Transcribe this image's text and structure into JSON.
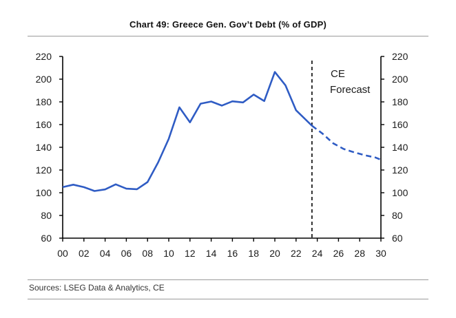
{
  "title": "Chart 49: Greece Gen. Gov’t Debt (% of GDP)",
  "source": "Sources: LSEG Data & Analytics, CE",
  "colors": {
    "series": "#2f5cc4",
    "axis": "#000000",
    "rule": "#9a9a9a"
  },
  "chart_data": {
    "type": "line",
    "title": "Chart 49: Greece Gen. Gov’t Debt (% of GDP)",
    "xlim": [
      2000,
      2030
    ],
    "ylim": [
      60,
      220
    ],
    "yticks": [
      60,
      80,
      100,
      120,
      140,
      160,
      180,
      200,
      220
    ],
    "xticks": [
      2000,
      2002,
      2004,
      2006,
      2008,
      2010,
      2012,
      2014,
      2016,
      2018,
      2020,
      2022,
      2024,
      2026,
      2028,
      2030
    ],
    "xtick_labels": [
      "00",
      "02",
      "04",
      "06",
      "08",
      "10",
      "12",
      "14",
      "16",
      "18",
      "20",
      "22",
      "24",
      "26",
      "28",
      "30"
    ],
    "grid": false,
    "right_axis": true,
    "forecast_divider_x": 2023.5,
    "annotation": {
      "lines": [
        "CE",
        "Forecast"
      ]
    },
    "series": [
      {
        "style": "solid",
        "x": [
          2000,
          2001,
          2002,
          2003,
          2004,
          2005,
          2006,
          2007,
          2008,
          2009,
          2010,
          2011,
          2012,
          2013,
          2014,
          2015,
          2016,
          2017,
          2018,
          2019,
          2020,
          2021,
          2022,
          2023.5
        ],
        "values": [
          104.9,
          107.1,
          104.9,
          101.5,
          102.9,
          107.4,
          103.6,
          103.1,
          109.4,
          126.7,
          147.5,
          175.2,
          162.0,
          178.4,
          180.3,
          176.7,
          180.5,
          179.5,
          186.4,
          180.7,
          206.3,
          194.6,
          172.6,
          159.0
        ]
      },
      {
        "style": "dashed",
        "x": [
          2023.5,
          2024.5,
          2025.5,
          2026.5,
          2027.5,
          2028.5,
          2029.5,
          2030
        ],
        "values": [
          159.0,
          152.0,
          143.5,
          138.5,
          135.5,
          133.0,
          131.0,
          129.0
        ]
      }
    ]
  }
}
